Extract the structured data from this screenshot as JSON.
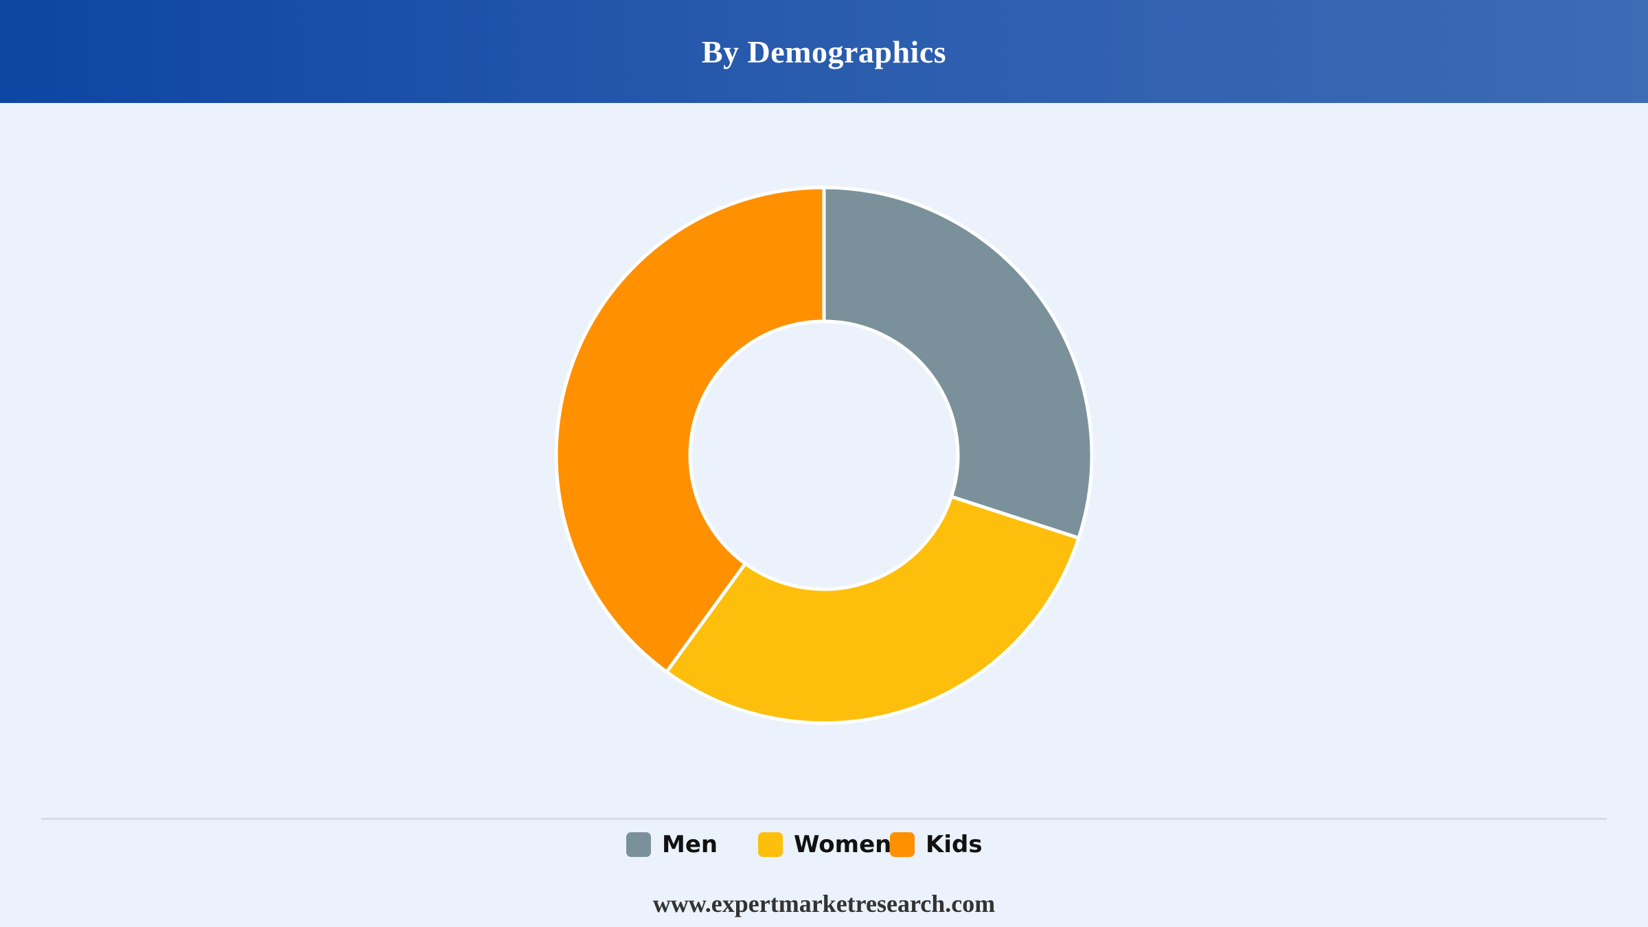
{
  "header": {
    "title": "By Demographics"
  },
  "chart_data": {
    "type": "pie",
    "donut": true,
    "categories": [
      "Men",
      "Women",
      "Kids"
    ],
    "values": [
      30,
      30,
      40
    ],
    "colors": [
      "#7a919b",
      "#fdbf0b",
      "#ff9000"
    ],
    "legend_position": "bottom-center",
    "title": ""
  },
  "legend": {
    "items": [
      {
        "label": "Men",
        "color": "#7a919b"
      },
      {
        "label": "Women",
        "color": "#fdbf0b"
      },
      {
        "label": "Kids",
        "color": "#ff9000"
      }
    ]
  },
  "footer": {
    "url": "www.expertmarketresearch.com"
  }
}
